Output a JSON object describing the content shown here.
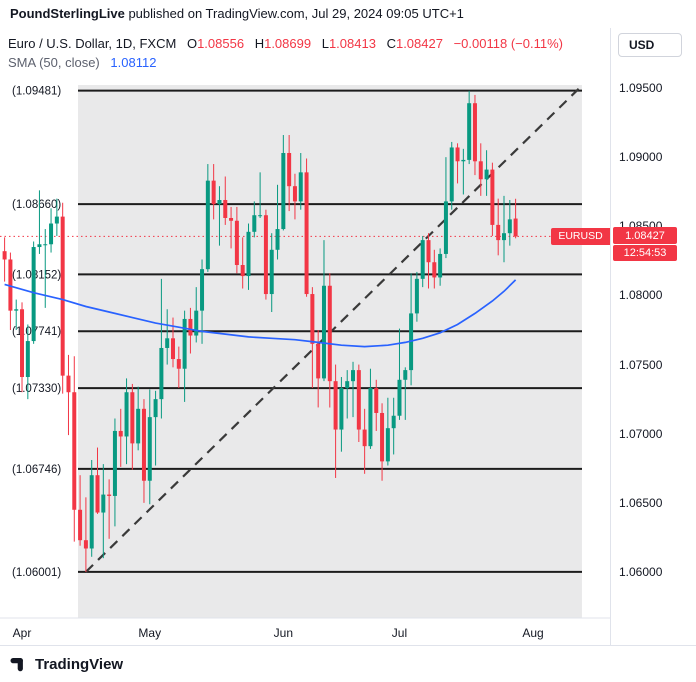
{
  "header": {
    "publisher": "PoundSterlingLive",
    "rest": " published on TradingView.com, Jul 29, 2024 09:05 UTC+1"
  },
  "legend": {
    "symbol_line": {
      "title": "Euro / U.S. Dollar, 1D, FXCM",
      "o_label": "O",
      "o": "1.08556",
      "h_label": "H",
      "h": "1.08699",
      "l_label": "L",
      "l": "1.08413",
      "c_label": "C",
      "c": "1.08427",
      "change": "−0.00118 (−0.11%)"
    },
    "sma_line": {
      "label": "SMA (50, close)",
      "value": "1.08112"
    }
  },
  "axis": {
    "currency_button": "USD",
    "price_labels": [
      {
        "text": "1.09500",
        "price": 1.095
      },
      {
        "text": "1.09000",
        "price": 1.09
      },
      {
        "text": "1.08500",
        "price": 1.085
      },
      {
        "text": "1.08000",
        "price": 1.08
      },
      {
        "text": "1.07500",
        "price": 1.075
      },
      {
        "text": "1.07000",
        "price": 1.07
      },
      {
        "text": "1.06500",
        "price": 1.065
      },
      {
        "text": "1.06000",
        "price": 1.06
      }
    ],
    "current": {
      "symbol": "EURUSD",
      "price": "1.08427",
      "countdown": "12:54:53"
    }
  },
  "time_axis": {
    "labels": [
      {
        "text": "Apr",
        "index": 3
      },
      {
        "text": "May",
        "index": 25
      },
      {
        "text": "Jun",
        "index": 48
      },
      {
        "text": "Jul",
        "index": 68
      },
      {
        "text": "Aug",
        "index": 91
      }
    ]
  },
  "footer": {
    "brand": "TradingView"
  },
  "colors": {
    "up": "#089981",
    "down": "#F23645",
    "sma": "#2962FF",
    "line": "#1c1c1c",
    "highlight": "#e9e9ea",
    "axis_border": "#e0e3eb"
  },
  "chart_data": {
    "type": "candlestick",
    "title": "Euro / U.S. Dollar, 1D, FXCM",
    "symbol": "EURUSD",
    "interval": "1D",
    "exchange": "FXCM",
    "ylim": [
      1.0567,
      1.0993
    ],
    "current_price": 1.08427,
    "sma_period": 50,
    "sma_last_value": 1.08112,
    "fib_levels": [
      {
        "price": 1.09481,
        "label": "(1.09481)"
      },
      {
        "price": 1.0866,
        "label": "(1.08660)"
      },
      {
        "price": 1.08152,
        "label": "(1.08152)"
      },
      {
        "price": 1.07741,
        "label": "(1.07741)"
      },
      {
        "price": 1.0733,
        "label": "(1.07330)"
      },
      {
        "price": 1.06746,
        "label": "(1.06746)"
      },
      {
        "price": 1.06001,
        "label": "(1.06001)"
      }
    ],
    "trendline": {
      "style": "dashed",
      "from_index": 14,
      "from_price": 1.06001,
      "to_index": 99,
      "to_price": 1.095
    },
    "highlight_range": {
      "from_index": 12.64,
      "to_index": 99.42
    },
    "sma_points": [
      [
        0,
        1.0808
      ],
      [
        5,
        1.0802
      ],
      [
        10,
        1.0797
      ],
      [
        14,
        1.0792
      ],
      [
        18,
        1.0788
      ],
      [
        22,
        1.0784
      ],
      [
        26,
        1.078
      ],
      [
        30,
        1.0777
      ],
      [
        34,
        1.0774
      ],
      [
        38,
        1.0772
      ],
      [
        42,
        1.077
      ],
      [
        46,
        1.0769
      ],
      [
        50,
        1.0768
      ],
      [
        54,
        1.0766
      ],
      [
        58,
        1.0764
      ],
      [
        62,
        1.0763
      ],
      [
        66,
        1.0764
      ],
      [
        69,
        1.0766
      ],
      [
        72,
        1.0769
      ],
      [
        75,
        1.0773
      ],
      [
        78,
        1.0779
      ],
      [
        81,
        1.0787
      ],
      [
        84,
        1.0796
      ],
      [
        86,
        1.0803
      ],
      [
        88,
        1.08112
      ]
    ],
    "ohlc": [
      [
        "2024-03-27",
        1.0832,
        1.0842,
        1.081,
        1.0826
      ],
      [
        "2024-03-28",
        1.0826,
        1.0831,
        1.0775,
        1.0789
      ],
      [
        "2024-03-29",
        1.0789,
        1.0797,
        1.0775,
        1.079
      ],
      [
        "2024-04-01",
        1.079,
        1.0795,
        1.073,
        1.0741
      ],
      [
        "2024-04-02",
        1.0741,
        1.0779,
        1.0725,
        1.0767
      ],
      [
        "2024-04-03",
        1.0767,
        1.0839,
        1.0765,
        1.0835
      ],
      [
        "2024-04-04",
        1.0835,
        1.0876,
        1.083,
        1.0837
      ],
      [
        "2024-04-05",
        1.0837,
        1.0848,
        1.0791,
        1.0837
      ],
      [
        "2024-04-08",
        1.0837,
        1.0863,
        1.0831,
        1.0852
      ],
      [
        "2024-04-09",
        1.0852,
        1.087,
        1.0843,
        1.0857
      ],
      [
        "2024-04-10",
        1.0857,
        1.0867,
        1.0729,
        1.0742
      ],
      [
        "2024-04-11",
        1.0742,
        1.0757,
        1.0699,
        1.073
      ],
      [
        "2024-04-12",
        1.073,
        1.0756,
        1.0622,
        1.0645
      ],
      [
        "2024-04-15",
        1.0645,
        1.067,
        1.0619,
        1.0623
      ],
      [
        "2024-04-16",
        1.0623,
        1.0654,
        1.06,
        1.0617
      ],
      [
        "2024-04-17",
        1.0617,
        1.0681,
        1.0611,
        1.067
      ],
      [
        "2024-04-18",
        1.067,
        1.069,
        1.0642,
        1.0643
      ],
      [
        "2024-04-19",
        1.0643,
        1.0678,
        1.061,
        1.0656
      ],
      [
        "2024-04-22",
        1.0656,
        1.0667,
        1.0624,
        1.0655
      ],
      [
        "2024-04-23",
        1.0655,
        1.0711,
        1.0633,
        1.0702
      ],
      [
        "2024-04-24",
        1.0702,
        1.0718,
        1.0676,
        1.0698
      ],
      [
        "2024-04-25",
        1.0698,
        1.074,
        1.0678,
        1.073
      ],
      [
        "2024-04-26",
        1.073,
        1.0736,
        1.0674,
        1.0693
      ],
      [
        "2024-04-29",
        1.0693,
        1.0734,
        1.0688,
        1.0718
      ],
      [
        "2024-04-30",
        1.0718,
        1.0725,
        1.065,
        1.0666
      ],
      [
        "2024-05-01",
        1.0666,
        1.0732,
        1.0649,
        1.0712
      ],
      [
        "2024-05-02",
        1.0712,
        1.0731,
        1.0677,
        1.0725
      ],
      [
        "2024-05-03",
        1.0725,
        1.0812,
        1.0711,
        1.0762
      ],
      [
        "2024-05-06",
        1.0762,
        1.079,
        1.075,
        1.0769
      ],
      [
        "2024-05-07",
        1.0769,
        1.0784,
        1.0748,
        1.0754
      ],
      [
        "2024-05-08",
        1.0754,
        1.0763,
        1.0733,
        1.0747
      ],
      [
        "2024-05-09",
        1.0747,
        1.0789,
        1.0723,
        1.0783
      ],
      [
        "2024-05-10",
        1.0783,
        1.0791,
        1.0758,
        1.0771
      ],
      [
        "2024-05-13",
        1.0771,
        1.0806,
        1.0766,
        1.0789
      ],
      [
        "2024-05-14",
        1.0789,
        1.0826,
        1.0765,
        1.0819
      ],
      [
        "2024-05-15",
        1.0819,
        1.0895,
        1.0817,
        1.0883
      ],
      [
        "2024-05-16",
        1.0883,
        1.0895,
        1.0855,
        1.0866
      ],
      [
        "2024-05-17",
        1.0866,
        1.0879,
        1.0836,
        1.0869
      ],
      [
        "2024-05-20",
        1.0869,
        1.0886,
        1.0851,
        1.0856
      ],
      [
        "2024-05-21",
        1.0856,
        1.0864,
        1.0834,
        1.0854
      ],
      [
        "2024-05-22",
        1.0854,
        1.0864,
        1.0816,
        1.0822
      ],
      [
        "2024-05-23",
        1.0822,
        1.0842,
        1.0805,
        1.0814
      ],
      [
        "2024-05-24",
        1.0814,
        1.0852,
        1.0804,
        1.0846
      ],
      [
        "2024-05-27",
        1.0846,
        1.0868,
        1.0842,
        1.0858
      ],
      [
        "2024-05-28",
        1.0858,
        1.0889,
        1.0856,
        1.0858
      ],
      [
        "2024-05-29",
        1.0858,
        1.0862,
        1.0797,
        1.0801
      ],
      [
        "2024-05-30",
        1.0801,
        1.0845,
        1.0788,
        1.0833
      ],
      [
        "2024-05-31",
        1.0833,
        1.088,
        1.0826,
        1.0848
      ],
      [
        "2024-06-03",
        1.0848,
        1.0916,
        1.0847,
        1.0903
      ],
      [
        "2024-06-04",
        1.0903,
        1.0916,
        1.0861,
        1.0879
      ],
      [
        "2024-06-05",
        1.0879,
        1.0888,
        1.0855,
        1.0868
      ],
      [
        "2024-06-06",
        1.0868,
        1.0903,
        1.0862,
        1.0889
      ],
      [
        "2024-06-07",
        1.0889,
        1.0899,
        1.0799,
        1.0801
      ],
      [
        "2024-06-10",
        1.0801,
        1.0806,
        1.0733,
        1.0765
      ],
      [
        "2024-06-11",
        1.0765,
        1.0775,
        1.0719,
        1.074
      ],
      [
        "2024-06-12",
        1.074,
        1.084,
        1.0738,
        1.0807
      ],
      [
        "2024-06-13",
        1.0807,
        1.0816,
        1.0719,
        1.0738
      ],
      [
        "2024-06-14",
        1.0738,
        1.075,
        1.0668,
        1.0703
      ],
      [
        "2024-06-17",
        1.0703,
        1.0741,
        1.0687,
        1.0733
      ],
      [
        "2024-06-18",
        1.0733,
        1.0746,
        1.0711,
        1.0738
      ],
      [
        "2024-06-19",
        1.0738,
        1.0752,
        1.0712,
        1.0746
      ],
      [
        "2024-06-20",
        1.0746,
        1.075,
        1.0694,
        1.0703
      ],
      [
        "2024-06-21",
        1.0703,
        1.0718,
        1.0671,
        1.0691
      ],
      [
        "2024-06-24",
        1.0691,
        1.0747,
        1.0689,
        1.0733
      ],
      [
        "2024-06-25",
        1.0733,
        1.0739,
        1.0702,
        1.0715
      ],
      [
        "2024-06-26",
        1.0715,
        1.0722,
        1.0666,
        1.068
      ],
      [
        "2024-06-27",
        1.068,
        1.0726,
        1.0677,
        1.0704
      ],
      [
        "2024-06-28",
        1.0704,
        1.0726,
        1.0685,
        1.0713
      ],
      [
        "2024-07-01",
        1.0713,
        1.0776,
        1.071,
        1.0739
      ],
      [
        "2024-07-02",
        1.0739,
        1.0748,
        1.071,
        1.0746
      ],
      [
        "2024-07-03",
        1.0746,
        1.0816,
        1.0735,
        1.0787
      ],
      [
        "2024-07-04",
        1.0787,
        1.0817,
        1.0781,
        1.0812
      ],
      [
        "2024-07-05",
        1.0812,
        1.0843,
        1.0806,
        1.084
      ],
      [
        "2024-07-08",
        1.084,
        1.0845,
        1.0805,
        1.0824
      ],
      [
        "2024-07-09",
        1.0824,
        1.0833,
        1.0805,
        1.0813
      ],
      [
        "2024-07-10",
        1.0813,
        1.0834,
        1.0807,
        1.083
      ],
      [
        "2024-07-11",
        1.083,
        1.09,
        1.0827,
        1.0868
      ],
      [
        "2024-07-12",
        1.0868,
        1.0911,
        1.0862,
        1.0907
      ],
      [
        "2024-07-15",
        1.0907,
        1.091,
        1.0881,
        1.0897
      ],
      [
        "2024-07-16",
        1.0897,
        1.0906,
        1.0873,
        1.0898
      ],
      [
        "2024-07-17",
        1.0898,
        1.0948,
        1.0895,
        1.0939
      ],
      [
        "2024-07-18",
        1.0939,
        1.0945,
        1.0887,
        1.0897
      ],
      [
        "2024-07-19",
        1.0897,
        1.091,
        1.0872,
        1.0884
      ],
      [
        "2024-07-22",
        1.0884,
        1.0905,
        1.0872,
        1.0891
      ],
      [
        "2024-07-23",
        1.0891,
        1.0896,
        1.0843,
        1.0851
      ],
      [
        "2024-07-24",
        1.0851,
        1.087,
        1.0829,
        1.084
      ],
      [
        "2024-07-25",
        1.084,
        1.0872,
        1.0824,
        1.0845
      ],
      [
        "2024-07-26",
        1.0845,
        1.0869,
        1.0836,
        1.0855
      ],
      [
        "2024-07-29",
        1.08556,
        1.08699,
        1.08413,
        1.08427
      ]
    ]
  }
}
